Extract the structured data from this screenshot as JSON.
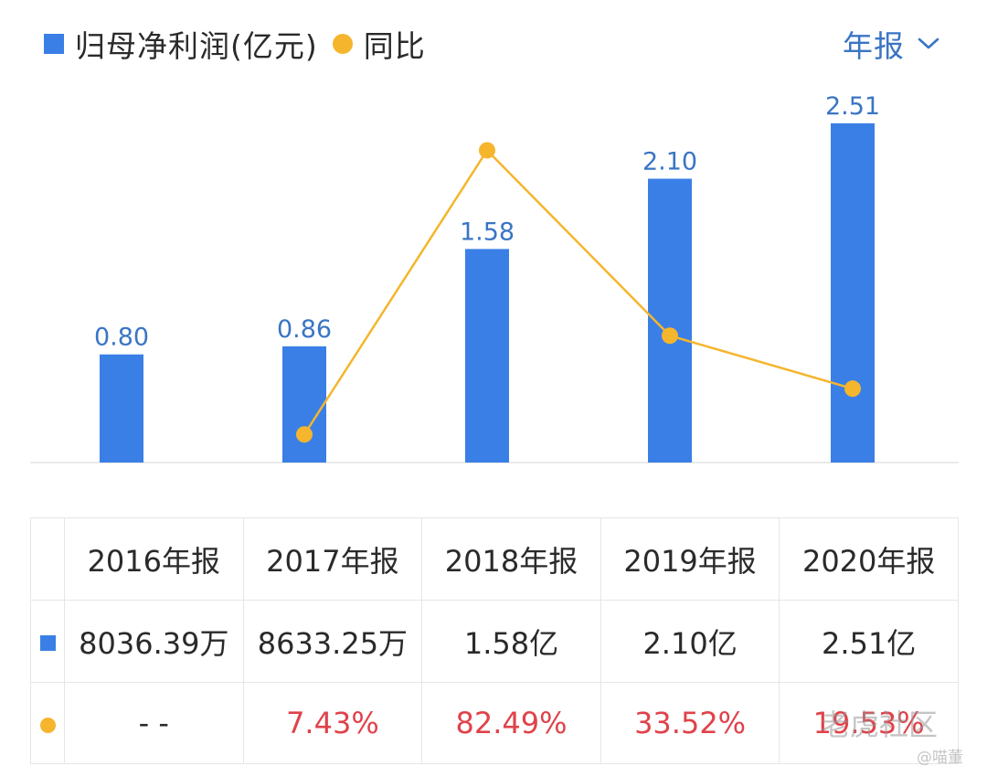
{
  "colors": {
    "bar": "#3a7fe6",
    "line": "#f5b52d",
    "label": "#3a75c4",
    "positive": "#e0424a",
    "text": "#2a2a2a",
    "period": "#3a75c4"
  },
  "legend": {
    "bar_label": "归母净利润(亿元)",
    "dot_label": "同比"
  },
  "period_selector": {
    "label": "年报",
    "icon": "chevron-down-icon"
  },
  "chart_data": {
    "type": "bar",
    "categories": [
      "2016年报",
      "2017年报",
      "2018年报",
      "2019年报",
      "2020年报"
    ],
    "series": [
      {
        "name": "归母净利润(亿元)",
        "type": "bar",
        "values": [
          0.8,
          0.86,
          1.58,
          2.1,
          2.51
        ],
        "labels": [
          "0.80",
          "0.86",
          "1.58",
          "2.10",
          "2.51"
        ]
      },
      {
        "name": "同比",
        "type": "line",
        "values": [
          null,
          7.43,
          82.49,
          33.52,
          19.53
        ]
      }
    ],
    "ylim": [
      0,
      2.8
    ],
    "y2lim": [
      0,
      100
    ],
    "grid": false,
    "legend": "top-left"
  },
  "table": {
    "headers": [
      "2016年报",
      "2017年报",
      "2018年报",
      "2019年报",
      "2020年报"
    ],
    "net_profit": [
      "8036.39万",
      "8633.25万",
      "1.58亿",
      "2.10亿",
      "2.51亿"
    ],
    "yoy": [
      "- -",
      "7.43%",
      "82.49%",
      "33.52%",
      "19.53%"
    ]
  },
  "watermark": {
    "text": "老虎社区",
    "handle": "@喵董"
  }
}
